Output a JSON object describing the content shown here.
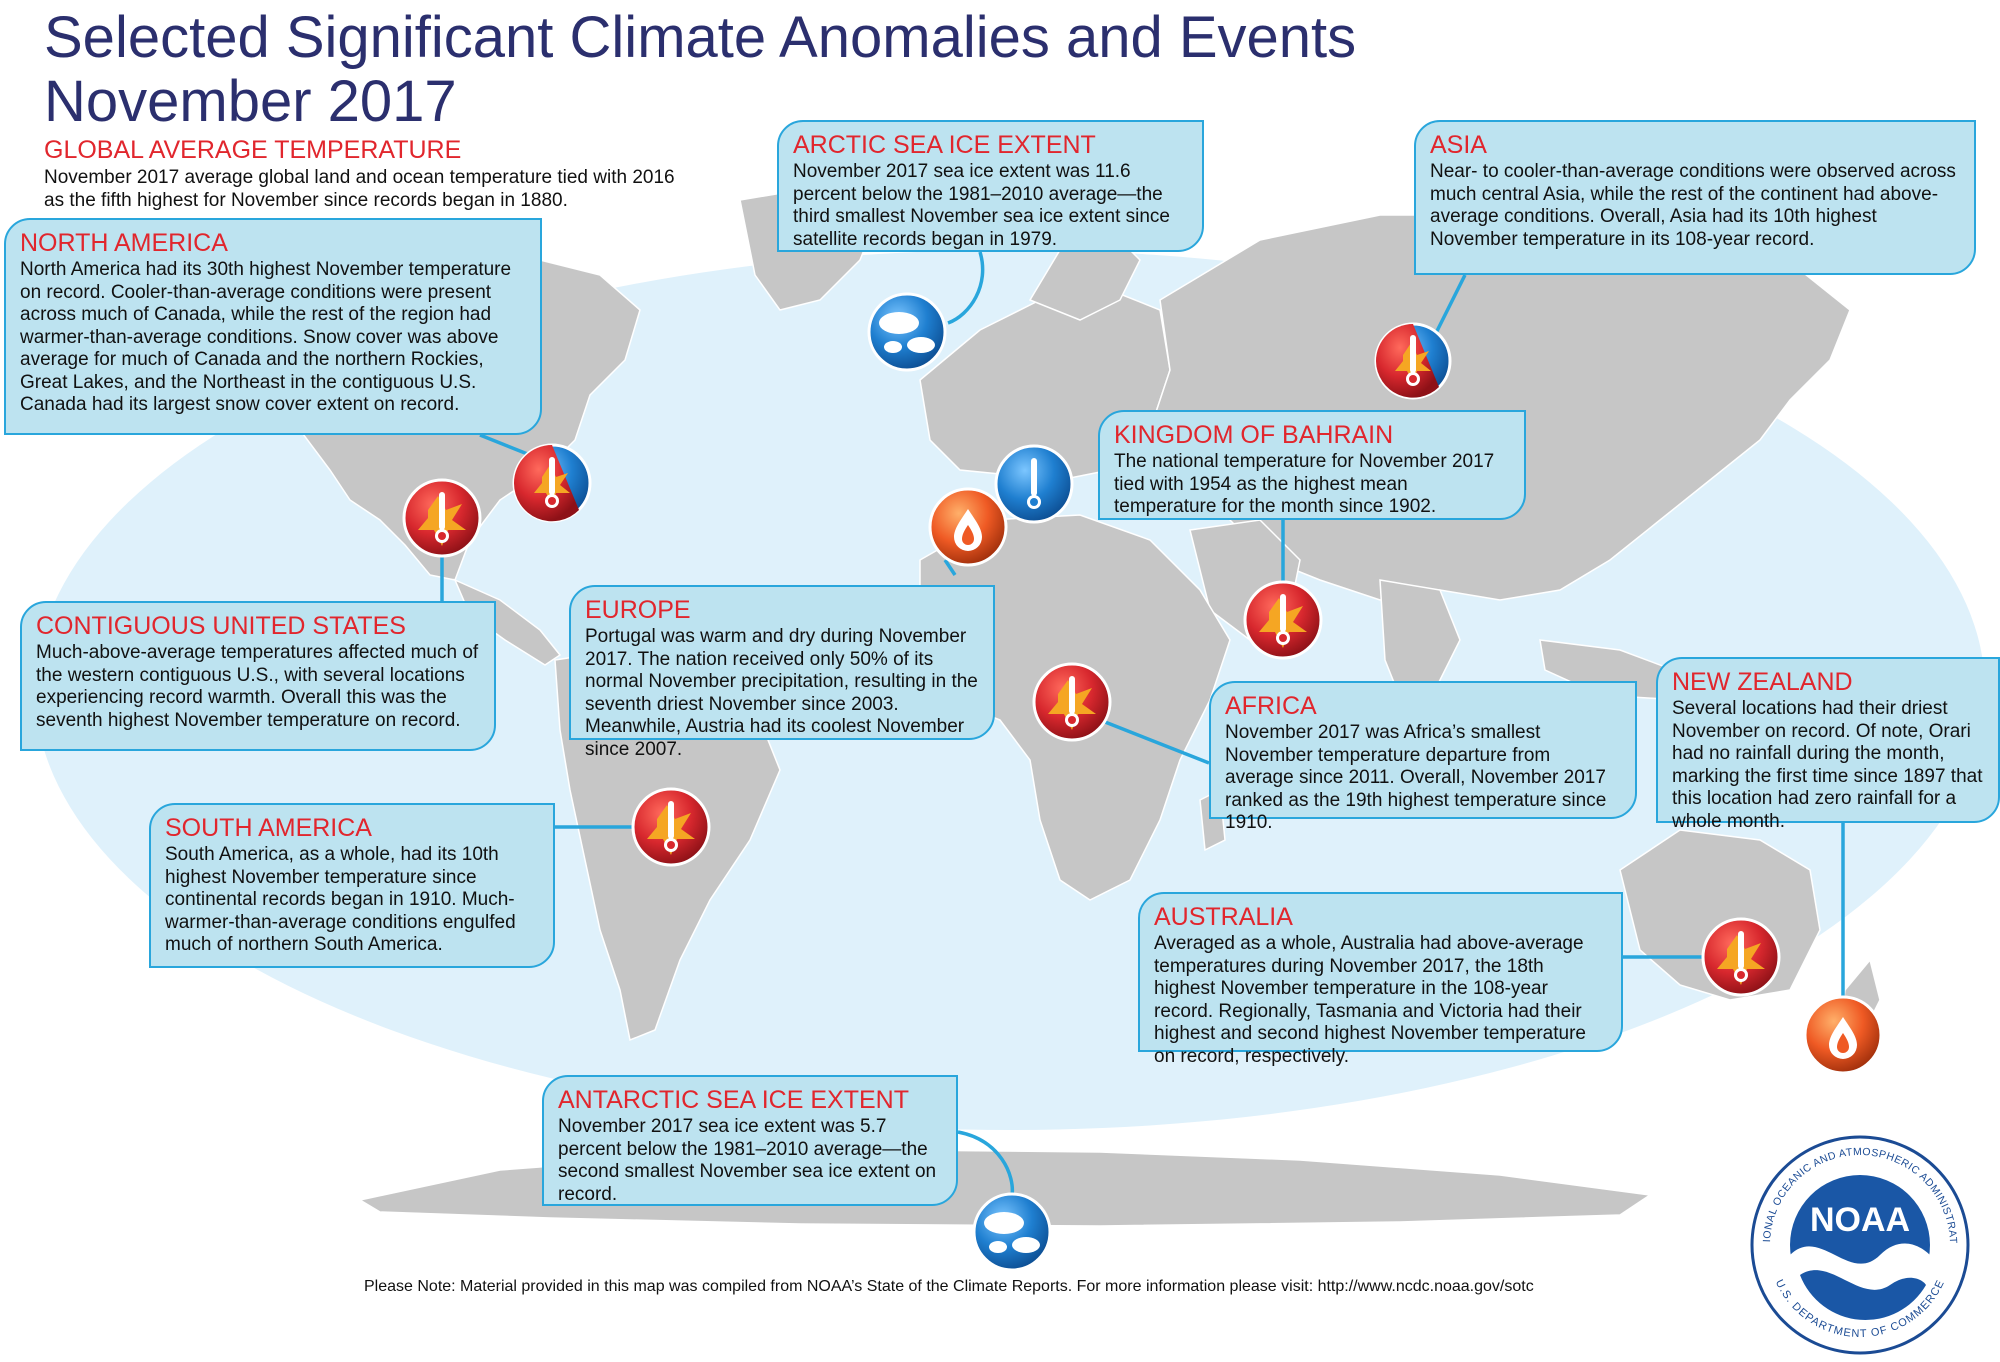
{
  "title": {
    "line1": "Selected Significant Climate Anomalies and Events",
    "line2": "November 2017"
  },
  "global": {
    "heading": "GLOBAL AVERAGE TEMPERATURE",
    "text": "November 2017 average global land and ocean temperature tied with 2016 as the fifth highest for November since records began in 1880."
  },
  "callouts": {
    "north_america": {
      "heading": "NORTH AMERICA",
      "text": "North America had its 30th highest November temperature on record. Cooler-than-average conditions were present across much of Canada, while the rest of the region had warmer-than-average conditions. Snow cover was above average for much of Canada and the northern Rockies, Great Lakes, and the Northeast in the contiguous U.S. Canada had its largest snow cover extent on record."
    },
    "arctic": {
      "heading": "ARCTIC SEA ICE EXTENT",
      "text": "November 2017 sea ice extent was 11.6 percent below the 1981–2010 average—the third smallest November sea ice extent since satellite records began in 1979."
    },
    "asia": {
      "heading": "ASIA",
      "text": "Near- to cooler-than-average conditions were observed across much central Asia, while the rest of the continent had above-average conditions.  Overall, Asia had its 10th highest November temperature in its 108-year record."
    },
    "bahrain": {
      "heading": "KINGDOM OF BAHRAIN",
      "text": "The national temperature for November 2017 tied with 1954 as the highest mean temperature for the month since 1902."
    },
    "contiguous_us": {
      "heading": "CONTIGUOUS UNITED STATES",
      "text": "Much-above-average temperatures affected much of the western contiguous U.S., with several locations experiencing record warmth. Overall this was the seventh highest November temperature on record."
    },
    "europe": {
      "heading": "EUROPE",
      "text": "Portugal was warm and dry during November 2017. The nation received only 50% of its normal November precipitation, resulting in the seventh driest November since 2003. Meanwhile, Austria had its coolest November since 2007."
    },
    "africa": {
      "heading": "AFRICA",
      "text": "November 2017 was Africa’s smallest November temperature departure  from average since 2011. Overall, November 2017 ranked as the 19th highest temperature since 1910."
    },
    "new_zealand": {
      "heading": "NEW ZEALAND",
      "text": "Several locations had their driest November on record. Of note, Orari had no rainfall during the month, marking the first time since 1897 that this location had zero rainfall for a whole month."
    },
    "south_america": {
      "heading": "SOUTH AMERICA",
      "text": "South America, as a whole, had its 10th highest November temperature since continental records began in 1910. Much-warmer-than-average conditions engulfed much of northern South America."
    },
    "australia": {
      "heading": "AUSTRALIA",
      "text": "Averaged as a whole, Australia had above-average temperatures during November 2017, the 18th highest November temperature in the 108-year record. Regionally, Tasmania and Victoria had their highest and second highest November temperature on record, respectively."
    },
    "antarctic": {
      "heading": "ANTARCTIC SEA ICE EXTENT",
      "text": "November 2017 sea ice extent was 5.7 percent below the 1981–2010 average—the second smallest November sea ice extent on record."
    }
  },
  "footnote": "Please Note: Material provided in this map was compiled from NOAA’s State of the Climate Reports. For more information please visit: http://www.ncdc.noaa.gov/sotc",
  "logo": {
    "name": "NOAA",
    "ring_text": "NATIONAL OCEANIC AND ATMOSPHERIC ADMINISTRATION",
    "bottom_text": "U.S. DEPARTMENT OF COMMERCE"
  },
  "colors": {
    "ocean": "#dff1fb",
    "land": "#c6c6c6",
    "callout_fill": "#bde3f0",
    "callout_border": "#29a6dc",
    "heading_red": "#e1262d",
    "title_navy": "#2b2f6e",
    "warm_icon": "#d8282e",
    "dry_icon": "#ef5a24",
    "cool_icon": "#1f7fd0"
  },
  "icons": [
    "arctic-ice-icon",
    "asia-warm-cool-icon",
    "canada-warm-cool-icon",
    "us-warm-icon",
    "portugal-dry-icon",
    "austria-cool-icon",
    "bahrain-warm-icon",
    "africa-warm-icon",
    "south-america-warm-icon",
    "australia-warm-icon",
    "new-zealand-dry-icon",
    "antarctic-ice-icon"
  ]
}
